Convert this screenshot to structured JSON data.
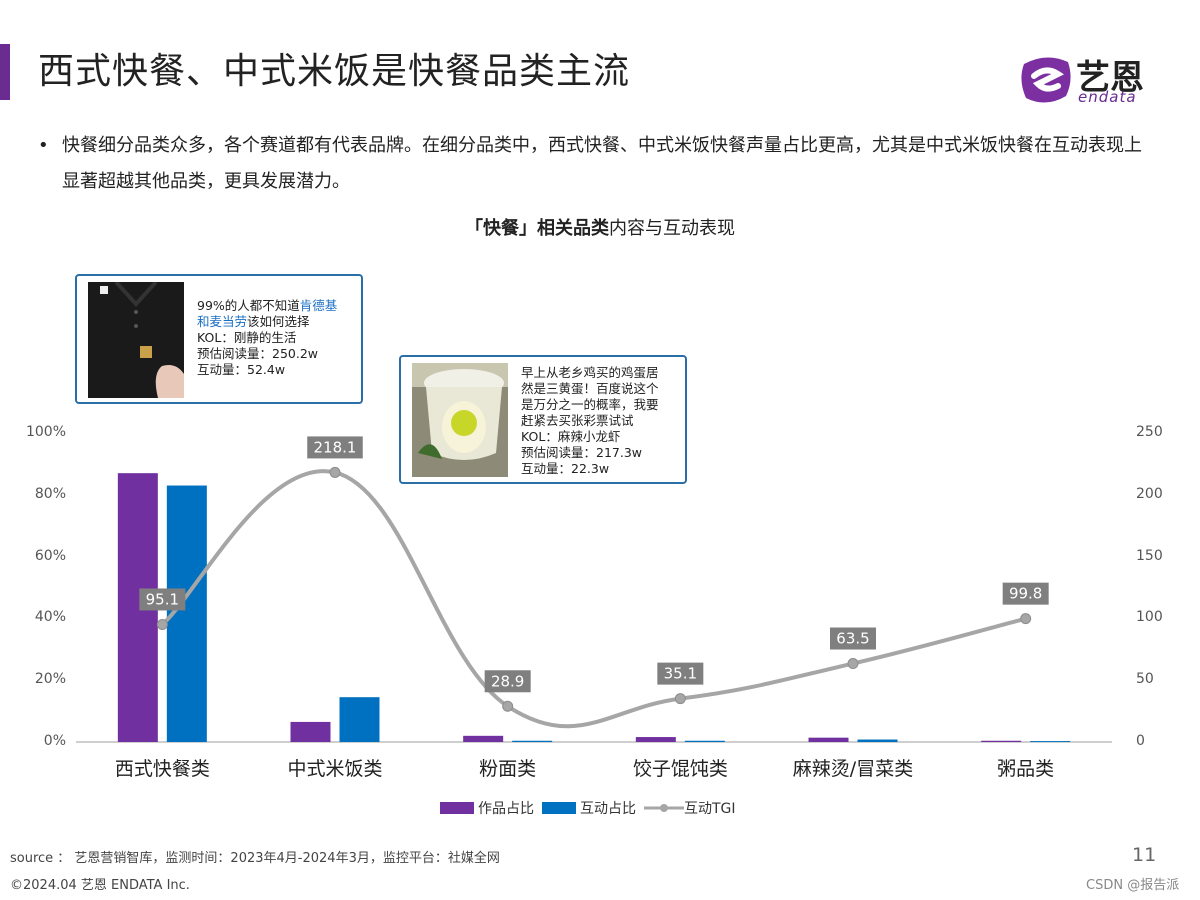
{
  "header": {
    "title": "西式快餐、中式米饭是快餐品类主流",
    "logo_text": "艺恩",
    "logo_sub": "endata"
  },
  "summary": {
    "bullet": "•",
    "text": "快餐细分品类众多，各个赛道都有代表品牌。在细分品类中，西式快餐、中式米饭快餐声量占比更高，尤其是中式米饭快餐在互动表现上显著超越其他品类，更具发展潜力。"
  },
  "cards": [
    {
      "line1_prefix": "99%的人都不知道",
      "line1_highlight": "肯德基",
      "line2_highlight": "和麦当劳",
      "line2_suffix": "该如何选择",
      "kol": "KOL：刚静的生活",
      "reads": "预估阅读量：250.2w",
      "interactions": "互动量：52.4w"
    },
    {
      "line1": "早上从老乡鸡买的鸡蛋居",
      "line2": "然是三黄蛋！百度说这个",
      "line3": "是万分之一的概率，我要",
      "line4": "赶紧去买张彩票试试",
      "kol": "KOL：麻辣小龙虾",
      "reads": "预估阅读量：217.3w",
      "interactions": "互动量：22.3w"
    }
  ],
  "chart_data": {
    "type": "bar",
    "title_bold": "「快餐」相关品类",
    "title_rest": "内容与互动表现",
    "categories": [
      "西式快餐类",
      "中式米饭类",
      "粉面类",
      "饺子馄饨类",
      "麻辣烫/冒菜类",
      "粥品类"
    ],
    "series": [
      {
        "name": "作品占比",
        "type": "bar",
        "axis": "left",
        "color": "#7030a0",
        "values": [
          0.87,
          0.065,
          0.02,
          0.016,
          0.014,
          0.004
        ]
      },
      {
        "name": "互动占比",
        "type": "bar",
        "axis": "left",
        "color": "#0070c0",
        "values": [
          0.83,
          0.145,
          0.004,
          0.004,
          0.008,
          0.003
        ]
      },
      {
        "name": "互动TGI",
        "type": "line",
        "axis": "right",
        "color": "#a6a6a6",
        "values": [
          95.1,
          218.1,
          28.9,
          35.1,
          63.5,
          99.8
        ]
      }
    ],
    "y_left": {
      "ticks": [
        "100%",
        "80%",
        "60%",
        "40%",
        "20%",
        "0%"
      ],
      "min": 0,
      "max": 1
    },
    "y_right": {
      "ticks": [
        "250",
        "200",
        "150",
        "100",
        "50",
        "0"
      ],
      "min": 0,
      "max": 250
    },
    "data_labels": [
      "95.1",
      "218.1",
      "28.9",
      "35.1",
      "63.5",
      "99.8"
    ],
    "legend_position": "bottom"
  },
  "footer": {
    "source": "source ： 艺恩营销智库，监测时间：2023年4月-2024年3月，监控平台：社媒全网",
    "copyright": "©2024.04  艺恩 ENDATA Inc.",
    "page": "11",
    "watermark": "CSDN @报告派"
  }
}
